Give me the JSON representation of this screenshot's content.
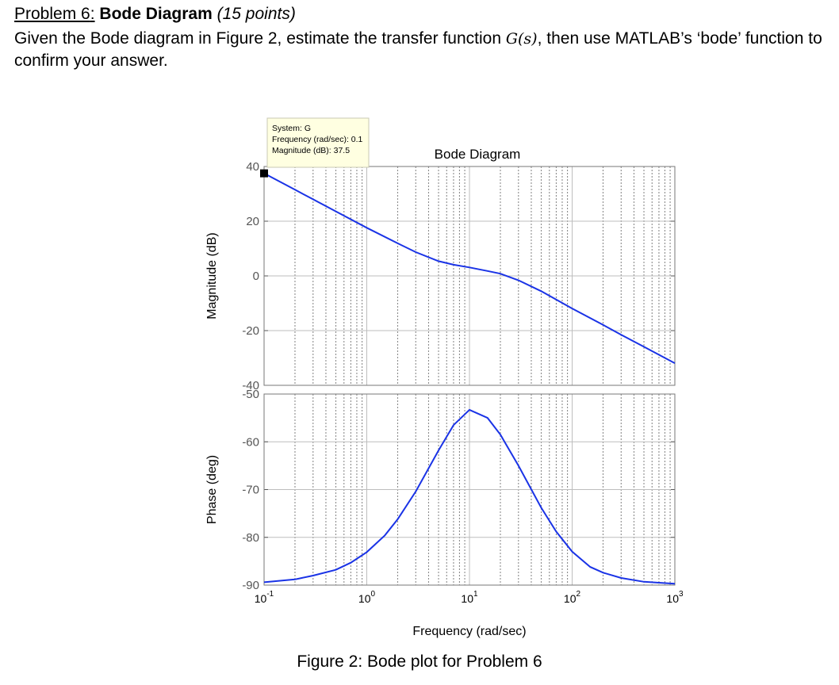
{
  "heading": {
    "problem": "Problem 6",
    "colon": ":",
    "title": "Bode Diagram",
    "points": "(15 points)"
  },
  "question": {
    "part1": "Given the Bode diagram in Figure 2, estimate the transfer function ",
    "math": "G(s)",
    "part2": ", then use MATLAB’s ‘bode’ function to confirm your answer."
  },
  "caption": "Figure 2: Bode plot for Problem 6",
  "chart_data": {
    "type": "line",
    "title": "Bode Diagram",
    "xlabel": "Frequency (rad/sec)",
    "xscale": "log",
    "xlim": [
      0.1,
      1000
    ],
    "x_ticks": [
      {
        "base": "10",
        "exp": "-1"
      },
      {
        "base": "10",
        "exp": "0"
      },
      {
        "base": "10",
        "exp": "1"
      },
      {
        "base": "10",
        "exp": "2"
      },
      {
        "base": "10",
        "exp": "3"
      }
    ],
    "grid": true,
    "line_color": "#1a33e6",
    "datatip": {
      "line1": "System: G",
      "line2": "Frequency (rad/sec): 0.1",
      "line3": "Magnitude (dB): 37.5",
      "x": 0.1,
      "y": 37.5
    },
    "panels": [
      {
        "name": "magnitude",
        "ylabel": "Magnitude (dB)",
        "ylim": [
          -40,
          40
        ],
        "yticks": [
          "40",
          "20",
          "0",
          "-20",
          "-40"
        ],
        "x": [
          0.1,
          0.2,
          0.3,
          0.5,
          1,
          2,
          3,
          5,
          7,
          10,
          15,
          20,
          30,
          50,
          100,
          200,
          300,
          500,
          1000
        ],
        "y": [
          37.5,
          31.5,
          28.0,
          23.6,
          17.6,
          11.9,
          8.7,
          5.4,
          4.1,
          3.1,
          1.8,
          0.8,
          -1.6,
          -5.6,
          -11.9,
          -17.9,
          -21.5,
          -25.9,
          -31.9
        ]
      },
      {
        "name": "phase",
        "ylabel": "Phase (deg)",
        "ylim": [
          -90,
          -50
        ],
        "yticks": [
          "-50",
          "-60",
          "-70",
          "-80",
          "-90"
        ],
        "x": [
          0.1,
          0.2,
          0.3,
          0.5,
          0.7,
          1,
          1.5,
          2,
          3,
          5,
          7,
          10,
          15,
          20,
          30,
          50,
          70,
          100,
          150,
          200,
          300,
          500,
          700,
          1000
        ],
        "y": [
          -89.4,
          -88.8,
          -88.0,
          -86.8,
          -85.3,
          -83.1,
          -79.6,
          -76.2,
          -70.4,
          -61.8,
          -56.5,
          -53.3,
          -55.0,
          -58.5,
          -65.0,
          -73.8,
          -78.8,
          -83.0,
          -86.2,
          -87.4,
          -88.5,
          -89.3,
          -89.5,
          -89.7
        ]
      }
    ]
  }
}
